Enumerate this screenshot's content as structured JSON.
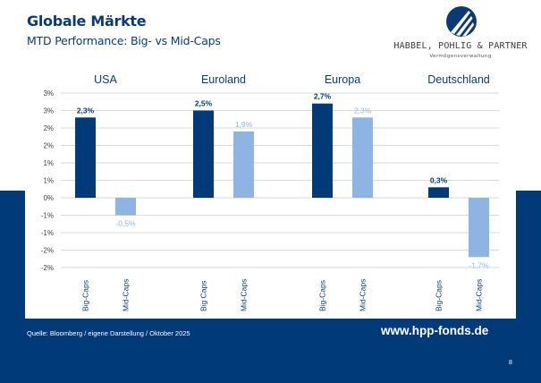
{
  "header": {
    "title": "Globale Märkte",
    "subtitle": "MTD Performance: Big- vs Mid-Caps"
  },
  "logo": {
    "name": "HABBEL, POHLIG & PARTNER",
    "tagline": "Vermögensverwaltung",
    "icon": "hpp-logo-icon"
  },
  "colors": {
    "primary": "#003a78",
    "big_caps": "#003a78",
    "mid_caps": "#8eb4e3",
    "grid": "#d9d9d9"
  },
  "chart_data": {
    "type": "bar",
    "title": "MTD Performance: Big- vs Mid-Caps",
    "xlabel": "",
    "ylabel": "",
    "ylim": [
      -2.0,
      3.0
    ],
    "ytick_step": 0.5,
    "yticks": [
      "3%",
      "3%",
      "2%",
      "2%",
      "1%",
      "1%",
      "0%",
      "-1%",
      "-1%",
      "-2%",
      "-2%"
    ],
    "grid": true,
    "legend": "none",
    "groups": [
      {
        "name": "USA",
        "bars": [
          {
            "label": "Big-Caps",
            "series": "big",
            "value": 2.3,
            "data_label": "2,3%"
          },
          {
            "label": "Mid-Caps",
            "series": "mid",
            "value": -0.5,
            "data_label": "-0,5%"
          }
        ]
      },
      {
        "name": "Euroland",
        "bars": [
          {
            "label": "Big Caps",
            "series": "big",
            "value": 2.5,
            "data_label": "2,5%"
          },
          {
            "label": "Mid-Caps",
            "series": "mid",
            "value": 1.9,
            "data_label": "1,9%"
          }
        ]
      },
      {
        "name": "Europa",
        "bars": [
          {
            "label": "Big-Caps",
            "series": "big",
            "value": 2.7,
            "data_label": "2,7%"
          },
          {
            "label": "Mid-Caps",
            "series": "mid",
            "value": 2.3,
            "data_label": "2,3%"
          }
        ]
      },
      {
        "name": "Deutschland",
        "bars": [
          {
            "label": "Big-Caps",
            "series": "big",
            "value": 0.3,
            "data_label": "0,3%"
          },
          {
            "label": "Mid-Caps",
            "series": "mid",
            "value": -1.7,
            "data_label": "-1,7%"
          }
        ]
      }
    ]
  },
  "footer": {
    "source": "Quelle: Bloomberg / eigene Darstellung / Oktober 2025",
    "url": "www.hpp-fonds.de",
    "page_number": "8"
  }
}
